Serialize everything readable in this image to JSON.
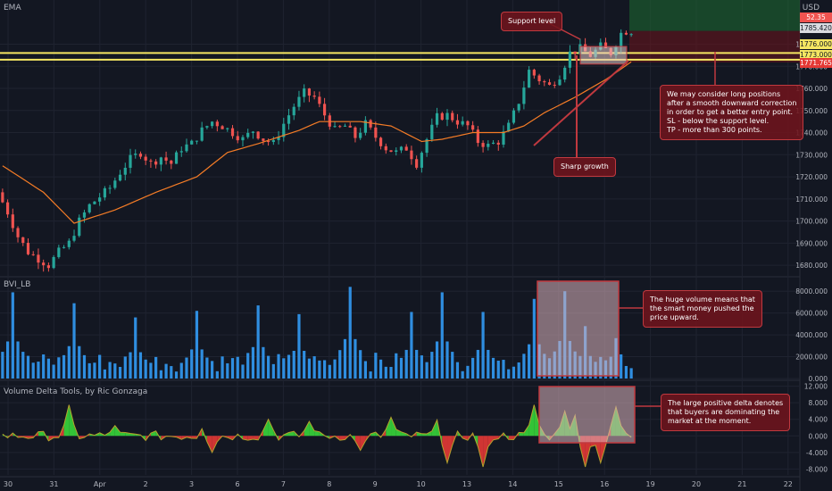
{
  "colors": {
    "background": "#131722",
    "grid": "#1f2330",
    "up": "#26a69a",
    "down": "#ef5350",
    "ema": "#f57c26",
    "support": "#f5e662",
    "volume": "#2f8ee0",
    "delta_pos": "#37d63a",
    "delta_neg": "#e53935",
    "delta_line": "#b3a12c",
    "annotation": "#c0393f"
  },
  "panels": {
    "price_label": "EMA",
    "volume_label": "BVI_LB",
    "delta_label": "Volume Delta Tools, by Ric Gonzaga",
    "currency": "USD"
  },
  "price_tags": {
    "current": "52.35",
    "last": "1785.420",
    "upper_support": "1776.000",
    "lower_support": "1773.000",
    "stop": "1771.765"
  },
  "annotations": {
    "support_level": "Support level",
    "sharp_growth": "Sharp growth",
    "idea_lines": [
      "We may consider long positions",
      "after a smooth downward correction",
      "in order to get a better entry point.",
      "SL - below the support level.",
      "TP - more than 300 points."
    ],
    "volume_lines": [
      "The huge volume means that",
      "the smart money pushed the",
      "price upward."
    ],
    "delta_lines": [
      "The large positive delta denotes",
      "that buyers are dominating the",
      "market at the moment."
    ]
  },
  "chart_data": [
    {
      "type": "candlestick",
      "title": "EMA",
      "ylabel": "USD",
      "ylim": [
        1676,
        1800
      ],
      "yticks": [
        1680,
        1690,
        1700,
        1710,
        1720,
        1730,
        1740,
        1750,
        1760,
        1770,
        1780
      ],
      "ytick_labels": [
        "1680.000",
        "1690.000",
        "1700.000",
        "1710.000",
        "1720.000",
        "1730.000",
        "1740.000",
        "1750.000",
        "1760.000",
        "1770.000",
        "1780.000"
      ],
      "x_ticks": [
        "30",
        "31",
        "Apr",
        "2",
        "3",
        "6",
        "7",
        "8",
        "9",
        "10",
        "13",
        "14",
        "15",
        "16",
        "19",
        "20",
        "21",
        "22"
      ],
      "close_path": [
        {
          "t": 0,
          "y": 1713
        },
        {
          "t": 2,
          "y": 1704
        },
        {
          "t": 4,
          "y": 1693
        },
        {
          "t": 6,
          "y": 1686
        },
        {
          "t": 8,
          "y": 1683
        },
        {
          "t": 10,
          "y": 1680
        },
        {
          "t": 12,
          "y": 1686
        },
        {
          "t": 14,
          "y": 1690
        },
        {
          "t": 16,
          "y": 1700
        },
        {
          "t": 18,
          "y": 1707
        },
        {
          "t": 20,
          "y": 1711
        },
        {
          "t": 22,
          "y": 1715
        },
        {
          "t": 24,
          "y": 1722
        },
        {
          "t": 26,
          "y": 1728
        },
        {
          "t": 28,
          "y": 1731
        },
        {
          "t": 30,
          "y": 1726
        },
        {
          "t": 32,
          "y": 1729
        },
        {
          "t": 34,
          "y": 1726
        },
        {
          "t": 36,
          "y": 1733
        },
        {
          "t": 38,
          "y": 1735
        },
        {
          "t": 40,
          "y": 1741
        },
        {
          "t": 42,
          "y": 1745
        },
        {
          "t": 44,
          "y": 1743
        },
        {
          "t": 46,
          "y": 1740
        },
        {
          "t": 48,
          "y": 1737
        },
        {
          "t": 50,
          "y": 1741
        },
        {
          "t": 52,
          "y": 1737
        },
        {
          "t": 54,
          "y": 1735
        },
        {
          "t": 56,
          "y": 1744
        },
        {
          "t": 58,
          "y": 1752
        },
        {
          "t": 60,
          "y": 1758
        },
        {
          "t": 62,
          "y": 1756
        },
        {
          "t": 64,
          "y": 1748
        },
        {
          "t": 66,
          "y": 1741
        },
        {
          "t": 68,
          "y": 1743
        },
        {
          "t": 70,
          "y": 1738
        },
        {
          "t": 72,
          "y": 1744
        },
        {
          "t": 74,
          "y": 1738
        },
        {
          "t": 76,
          "y": 1733
        },
        {
          "t": 78,
          "y": 1731
        },
        {
          "t": 80,
          "y": 1733
        },
        {
          "t": 82,
          "y": 1726
        },
        {
          "t": 84,
          "y": 1737
        },
        {
          "t": 86,
          "y": 1747
        },
        {
          "t": 88,
          "y": 1748
        },
        {
          "t": 90,
          "y": 1745
        },
        {
          "t": 92,
          "y": 1743
        },
        {
          "t": 94,
          "y": 1736
        },
        {
          "t": 96,
          "y": 1734
        },
        {
          "t": 98,
          "y": 1736
        },
        {
          "t": 100,
          "y": 1743
        },
        {
          "t": 102,
          "y": 1754
        },
        {
          "t": 104,
          "y": 1768
        },
        {
          "t": 106,
          "y": 1764
        },
        {
          "t": 108,
          "y": 1761
        },
        {
          "t": 110,
          "y": 1766
        },
        {
          "t": 112,
          "y": 1776
        },
        {
          "t": 114,
          "y": 1778
        },
        {
          "t": 116,
          "y": 1775
        },
        {
          "t": 118,
          "y": 1779
        },
        {
          "t": 120,
          "y": 1776
        },
        {
          "t": 122,
          "y": 1785
        },
        {
          "t": 123,
          "y": 1786
        }
      ],
      "ema_path": [
        {
          "t": 0,
          "y": 1725
        },
        {
          "t": 8,
          "y": 1713
        },
        {
          "t": 14,
          "y": 1699
        },
        {
          "t": 22,
          "y": 1705
        },
        {
          "t": 30,
          "y": 1713
        },
        {
          "t": 38,
          "y": 1720
        },
        {
          "t": 44,
          "y": 1731
        },
        {
          "t": 50,
          "y": 1735
        },
        {
          "t": 58,
          "y": 1741
        },
        {
          "t": 62,
          "y": 1745
        },
        {
          "t": 70,
          "y": 1745
        },
        {
          "t": 76,
          "y": 1743
        },
        {
          "t": 82,
          "y": 1736
        },
        {
          "t": 86,
          "y": 1737
        },
        {
          "t": 92,
          "y": 1740
        },
        {
          "t": 98,
          "y": 1740
        },
        {
          "t": 102,
          "y": 1743
        },
        {
          "t": 106,
          "y": 1749
        },
        {
          "t": 112,
          "y": 1756
        },
        {
          "t": 118,
          "y": 1764
        },
        {
          "t": 123,
          "y": 1772
        }
      ],
      "support_levels": [
        1776,
        1773
      ],
      "stop_level": 1771.765
    },
    {
      "type": "bar",
      "title": "BVI_LB",
      "ylim": [
        0,
        9000
      ],
      "yticks": [
        0,
        2000,
        4000,
        6000,
        8000
      ],
      "ytick_labels": [
        "0.000",
        "2000.000",
        "4000.000",
        "6000.000",
        "8000.000"
      ],
      "spikes": [
        {
          "t": 2,
          "v": 7900
        },
        {
          "t": 14,
          "v": 6900
        },
        {
          "t": 26,
          "v": 5600
        },
        {
          "t": 38,
          "v": 6200
        },
        {
          "t": 50,
          "v": 6700
        },
        {
          "t": 58,
          "v": 5900
        },
        {
          "t": 68,
          "v": 8400
        },
        {
          "t": 80,
          "v": 6100
        },
        {
          "t": 86,
          "v": 7900
        },
        {
          "t": 94,
          "v": 6100
        },
        {
          "t": 104,
          "v": 7300
        },
        {
          "t": 110,
          "v": 8000
        },
        {
          "t": 114,
          "v": 4800
        },
        {
          "t": 120,
          "v": 3700
        }
      ],
      "baseline": 1600
    },
    {
      "type": "area",
      "title": "Volume Delta Tools, by Ric Gonzaga",
      "ylim": [
        -9000,
        13000
      ],
      "yticks": [
        -8000,
        -4000,
        0,
        4000,
        8000,
        12000
      ],
      "ytick_labels": [
        "-8.000",
        "-4.000",
        "0.000",
        "4.000",
        "8.000",
        "12.000"
      ],
      "spikes": [
        {
          "t": 13,
          "v": 7500
        },
        {
          "t": 22,
          "v": 2500
        },
        {
          "t": 40,
          "v": 5000
        },
        {
          "t": 41,
          "v": -4000
        },
        {
          "t": 52,
          "v": 4000
        },
        {
          "t": 60,
          "v": 3500
        },
        {
          "t": 70,
          "v": -3500
        },
        {
          "t": 76,
          "v": 4500
        },
        {
          "t": 86,
          "v": 11000
        },
        {
          "t": 87,
          "v": -6500
        },
        {
          "t": 94,
          "v": -7500
        },
        {
          "t": 104,
          "v": 7500
        },
        {
          "t": 110,
          "v": 6000
        },
        {
          "t": 112,
          "v": 5000
        },
        {
          "t": 114,
          "v": -7500
        },
        {
          "t": 117,
          "v": -6500
        },
        {
          "t": 120,
          "v": 7000
        }
      ]
    }
  ]
}
